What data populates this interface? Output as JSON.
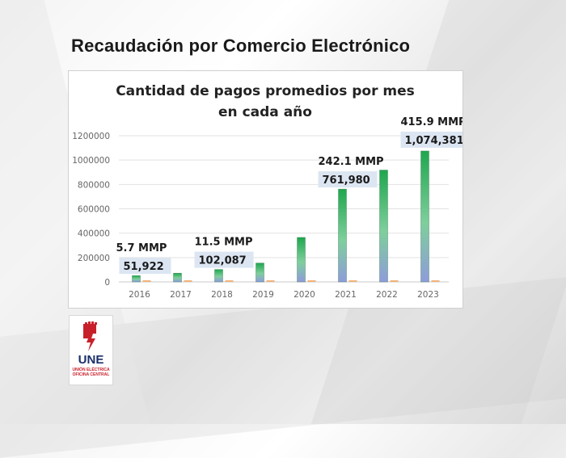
{
  "slide": {
    "title": "Recaudación por Comercio Electrónico"
  },
  "logo": {
    "brand": "UNE",
    "line1": "UNIÓN ELÉCTRICA",
    "line2": "OFICINA CENTRAL",
    "colors": {
      "red": "#c8202a",
      "navy": "#1a2e6b"
    }
  },
  "chart_data": {
    "type": "bar",
    "title_lines": [
      "Cantidad  de pagos promedios por mes",
      "en cada año"
    ],
    "categories": [
      "2016",
      "2017",
      "2018",
      "2019",
      "2020",
      "2021",
      "2022",
      "2023"
    ],
    "values": [
      51922,
      72000,
      102087,
      155000,
      365000,
      761980,
      918000,
      1074381
    ],
    "ylim": [
      0,
      1200000
    ],
    "yticks": [
      0,
      200000,
      400000,
      600000,
      800000,
      1000000,
      1200000
    ],
    "grid": true,
    "data_labels": [
      {
        "index": 0,
        "value_text": "51,922",
        "amount_text": "5.7 MMP"
      },
      {
        "index": 2,
        "value_text": "102,087",
        "amount_text": "11.5 MMP"
      },
      {
        "index": 5,
        "value_text": "761,980",
        "amount_text": "242.1 MMP"
      },
      {
        "index": 7,
        "value_text": "1,074,381",
        "amount_text": "415.9 MMP"
      }
    ],
    "colors": {
      "bar_top": "#1fa64e",
      "bar_bottom": "#8f9bdb",
      "label_bg": "#dce6f2",
      "grid": "#e2e2e2"
    }
  }
}
